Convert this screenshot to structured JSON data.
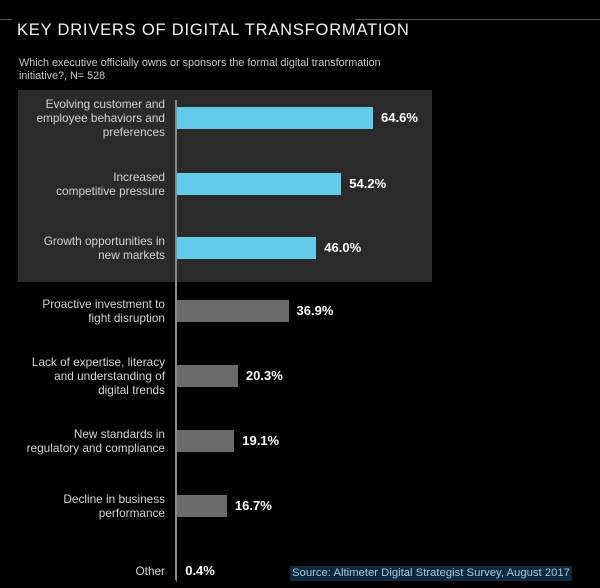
{
  "header": {
    "title": "KEY DRIVERS OF DIGITAL TRANSFORMATION",
    "subtitle": "Which executive officially owns or sponsors the formal digital transformation initiative?, N= 528"
  },
  "footer": {
    "source": "Source: Altimeter Digital Strategist Survey, August 2017"
  },
  "colors": {
    "highlight_bar": "#62cbea",
    "normal_bar": "#6b6b6b",
    "highlight_box": "#2a2a2a",
    "background": "#000000"
  },
  "chart_data": {
    "type": "bar",
    "orientation": "horizontal",
    "title": "KEY DRIVERS OF DIGITAL TRANSFORMATION",
    "subtitle": "Which executive officially owns or sponsors the formal digital transformation initiative?, N= 528",
    "xlabel": "",
    "ylabel": "",
    "unit": "%",
    "grid": false,
    "categories": [
      "Evolving customer and employee behaviors and preferences",
      "Increased competitive pressure",
      "Growth opportunities in new markets",
      "Proactive investment to fight disruption",
      "Lack of expertise, literacy and understanding of digital trends",
      "New standards in regulatory and compliance",
      "Decline in business performance",
      "Other"
    ],
    "values": [
      64.6,
      54.2,
      46.0,
      36.9,
      20.3,
      19.1,
      16.7,
      0.4
    ],
    "value_labels": [
      "64.6%",
      "54.2%",
      "46.0%",
      "36.9%",
      "20.3%",
      "19.1%",
      "16.7%",
      "0.4%"
    ],
    "highlighted": [
      true,
      true,
      true,
      false,
      false,
      false,
      false,
      false
    ],
    "source": "Source: Altimeter Digital Strategist Survey, August 2017"
  }
}
